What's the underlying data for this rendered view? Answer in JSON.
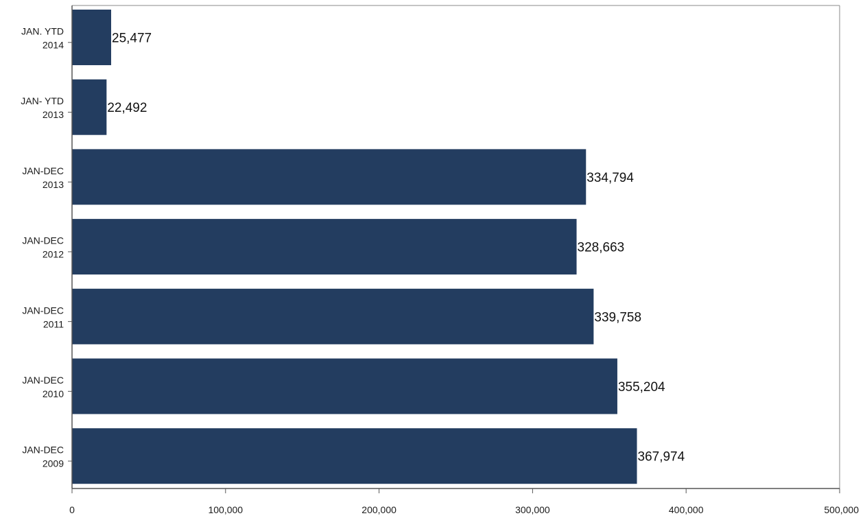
{
  "chart_data": {
    "type": "bar",
    "orientation": "horizontal",
    "categories": [
      [
        "JAN. YTD",
        "2014"
      ],
      [
        "JAN- YTD",
        "2013"
      ],
      [
        "JAN-DEC",
        "2013"
      ],
      [
        "JAN-DEC",
        "2012"
      ],
      [
        "JAN-DEC",
        "2011"
      ],
      [
        "JAN-DEC",
        "2010"
      ],
      [
        "JAN-DEC",
        "2009"
      ]
    ],
    "values": [
      25477,
      22492,
      334794,
      328663,
      339758,
      355204,
      367974
    ],
    "value_labels": [
      "25,477",
      "22,492",
      "334,794",
      "328,663",
      "339,758",
      "355,204",
      "367,974"
    ],
    "xlim": [
      0,
      500000
    ],
    "x_ticks": [
      0,
      100000,
      200000,
      300000,
      400000,
      500000
    ],
    "x_tick_labels": [
      "0",
      "100,000",
      "200,000",
      "300,000",
      "400,000",
      "500,000"
    ],
    "title": "",
    "xlabel": "",
    "ylabel": "",
    "grid": false,
    "legend": "none",
    "colors": {
      "bar": "#233d60",
      "axis": "#555555",
      "frame": "#888888"
    }
  }
}
